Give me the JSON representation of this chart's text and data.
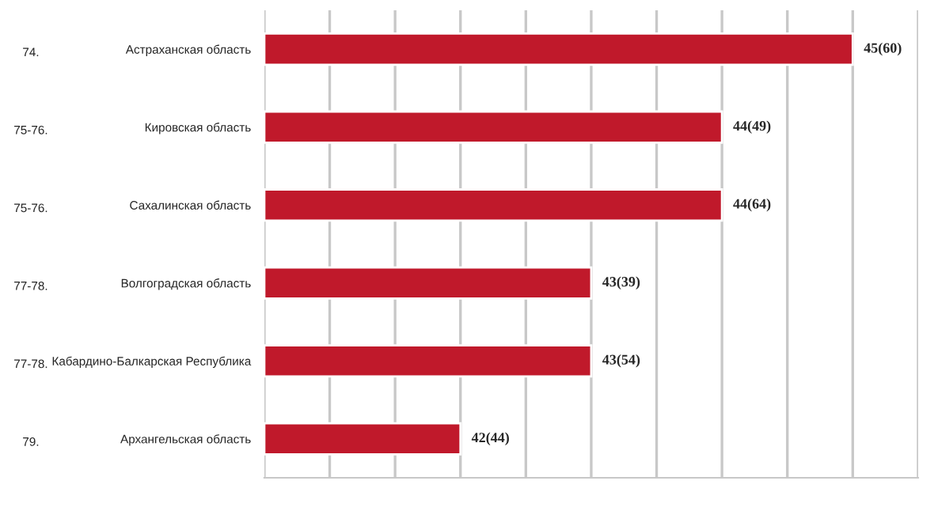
{
  "chart_data": {
    "type": "bar",
    "orientation": "horizontal",
    "categories": [
      "Астраханская область",
      "Кировская область",
      "Сахалинская область",
      "Волгоградская область",
      "Кабардино-Балкарская Республика",
      "Архангельская область"
    ],
    "values": [
      45,
      44,
      44,
      43,
      43,
      42
    ],
    "value_labels": [
      "45(60)",
      "44(49)",
      "44(64)",
      "43(39)",
      "43(54)",
      "42(44)"
    ],
    "color": "#c0192b",
    "xlim": [
      40.5,
      45.5
    ],
    "xticks": [
      {
        "value": 40.5,
        "label": null
      },
      {
        "value": 41,
        "label": null
      },
      {
        "value": 41.5,
        "label": null
      },
      {
        "value": 42,
        "label": null
      },
      {
        "value": 42.5,
        "label": null
      },
      {
        "value": 43,
        "label": null
      },
      {
        "value": 43.5,
        "label": null
      },
      {
        "value": 44,
        "label": null
      },
      {
        "value": 44.5,
        "label": null
      },
      {
        "value": 45,
        "label": null
      },
      {
        "value": 45.5,
        "label": null
      }
    ],
    "grid": "x",
    "tick_labels": "y",
    "annotations": [
      "74.",
      "75-76.",
      "75-76.",
      "77-78.",
      "77-78.",
      "79."
    ]
  }
}
